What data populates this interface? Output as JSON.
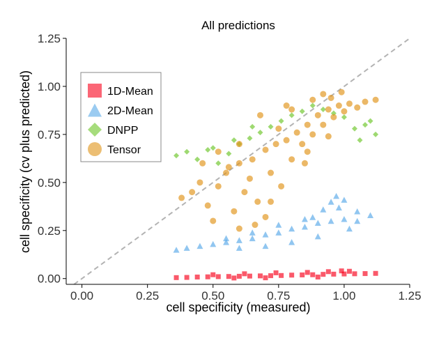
{
  "chart_data": {
    "type": "scatter",
    "title": "All predictions",
    "xlabel": "cell specificity (measured)",
    "ylabel": "cell specificity (cv plus predicted)",
    "xlim": [
      -0.06,
      1.25
    ],
    "ylim": [
      -0.03,
      1.25
    ],
    "x_ticks": [
      "0.00",
      "0.25",
      "0.50",
      "0.75",
      "1.00",
      "1.25"
    ],
    "y_ticks": [
      "0.00",
      "0.25",
      "0.50",
      "0.75",
      "1.00",
      "1.25"
    ],
    "x_tick_values": [
      0,
      0.25,
      0.5,
      0.75,
      1.0,
      1.25
    ],
    "y_tick_values": [
      0,
      0.25,
      0.5,
      0.75,
      1.0,
      1.25
    ],
    "grid": false,
    "reference_line": {
      "style": "dashed",
      "slope": 1,
      "intercept": 0,
      "color": "#b3b3b3"
    },
    "legend_position": "left",
    "series": [
      {
        "name": "1D-Mean",
        "marker": "square",
        "color": "#f8001a",
        "points": [
          [
            0.36,
            0.005
          ],
          [
            0.4,
            0.006
          ],
          [
            0.44,
            0.008
          ],
          [
            0.48,
            0.009
          ],
          [
            0.52,
            0.01
          ],
          [
            0.56,
            0.011
          ],
          [
            0.6,
            0.012
          ],
          [
            0.64,
            0.013
          ],
          [
            0.68,
            0.014
          ],
          [
            0.72,
            0.015
          ],
          [
            0.76,
            0.016
          ],
          [
            0.8,
            0.018
          ],
          [
            0.84,
            0.019
          ],
          [
            0.88,
            0.02
          ],
          [
            0.92,
            0.022
          ],
          [
            0.96,
            0.023
          ],
          [
            1.0,
            0.024
          ],
          [
            1.04,
            0.025
          ],
          [
            1.08,
            0.026
          ],
          [
            1.12,
            0.027
          ],
          [
            0.5,
            0.02
          ],
          [
            0.62,
            0.025
          ],
          [
            0.74,
            0.03
          ],
          [
            0.86,
            0.032
          ],
          [
            0.94,
            0.036
          ],
          [
            0.99,
            0.04
          ],
          [
            1.02,
            0.038
          ],
          [
            0.9,
            0.008
          ],
          [
            0.7,
            0.004
          ],
          [
            0.58,
            0.003
          ]
        ]
      },
      {
        "name": "2D-Mean",
        "marker": "triangle",
        "color": "#56a8e8",
        "points": [
          [
            0.36,
            0.15
          ],
          [
            0.4,
            0.16
          ],
          [
            0.45,
            0.17
          ],
          [
            0.5,
            0.18
          ],
          [
            0.55,
            0.19
          ],
          [
            0.6,
            0.2
          ],
          [
            0.65,
            0.21
          ],
          [
            0.7,
            0.23
          ],
          [
            0.75,
            0.24
          ],
          [
            0.8,
            0.26
          ],
          [
            0.85,
            0.27
          ],
          [
            0.9,
            0.29
          ],
          [
            0.95,
            0.3
          ],
          [
            1.0,
            0.31
          ],
          [
            1.05,
            0.3
          ],
          [
            1.1,
            0.33
          ],
          [
            0.88,
            0.32
          ],
          [
            0.92,
            0.36
          ],
          [
            0.95,
            0.4
          ],
          [
            0.97,
            0.43
          ],
          [
            1.0,
            0.41
          ],
          [
            0.98,
            0.37
          ],
          [
            0.9,
            0.22
          ],
          [
            0.8,
            0.19
          ],
          [
            0.7,
            0.17
          ],
          [
            0.6,
            0.16
          ],
          [
            0.75,
            0.28
          ],
          [
            0.85,
            0.31
          ],
          [
            1.02,
            0.26
          ],
          [
            1.05,
            0.35
          ],
          [
            0.65,
            0.24
          ],
          [
            0.55,
            0.21
          ]
        ]
      },
      {
        "name": "DNPP",
        "marker": "diamond",
        "color": "#6ac425",
        "points": [
          [
            0.36,
            0.64
          ],
          [
            0.4,
            0.66
          ],
          [
            0.44,
            0.62
          ],
          [
            0.48,
            0.67
          ],
          [
            0.52,
            0.6
          ],
          [
            0.56,
            0.65
          ],
          [
            0.6,
            0.7
          ],
          [
            0.64,
            0.73
          ],
          [
            0.68,
            0.76
          ],
          [
            0.72,
            0.79
          ],
          [
            0.76,
            0.82
          ],
          [
            0.8,
            0.85
          ],
          [
            0.84,
            0.87
          ],
          [
            0.88,
            0.9
          ],
          [
            0.92,
            0.88
          ],
          [
            0.96,
            0.86
          ],
          [
            1.0,
            0.84
          ],
          [
            1.04,
            0.78
          ],
          [
            1.08,
            0.8
          ],
          [
            1.12,
            0.75
          ],
          [
            1.06,
            0.72
          ],
          [
            1.1,
            0.82
          ],
          [
            0.58,
            0.72
          ],
          [
            0.5,
            0.68
          ],
          [
            0.65,
            0.79
          ]
        ]
      },
      {
        "name": "Tensor",
        "marker": "circle",
        "color": "#e09215",
        "points": [
          [
            0.38,
            0.42
          ],
          [
            0.42,
            0.45
          ],
          [
            0.45,
            0.5
          ],
          [
            0.48,
            0.38
          ],
          [
            0.5,
            0.3
          ],
          [
            0.52,
            0.48
          ],
          [
            0.55,
            0.55
          ],
          [
            0.58,
            0.35
          ],
          [
            0.6,
            0.6
          ],
          [
            0.62,
            0.45
          ],
          [
            0.65,
            0.62
          ],
          [
            0.67,
            0.4
          ],
          [
            0.7,
            0.67
          ],
          [
            0.72,
            0.55
          ],
          [
            0.74,
            0.7
          ],
          [
            0.76,
            0.48
          ],
          [
            0.78,
            0.72
          ],
          [
            0.8,
            0.62
          ],
          [
            0.82,
            0.76
          ],
          [
            0.84,
            0.7
          ],
          [
            0.86,
            0.8
          ],
          [
            0.88,
            0.75
          ],
          [
            0.9,
            0.85
          ],
          [
            0.92,
            0.8
          ],
          [
            0.94,
            0.88
          ],
          [
            0.96,
            0.84
          ],
          [
            0.98,
            0.9
          ],
          [
            1.0,
            0.87
          ],
          [
            1.02,
            0.91
          ],
          [
            1.05,
            0.89
          ],
          [
            1.08,
            0.92
          ],
          [
            1.12,
            0.93
          ],
          [
            0.7,
            0.32
          ],
          [
            0.66,
            0.28
          ],
          [
            0.6,
            0.26
          ],
          [
            0.85,
            0.6
          ],
          [
            0.75,
            0.78
          ],
          [
            0.8,
            0.88
          ],
          [
            0.88,
            0.93
          ],
          [
            0.95,
            0.94
          ],
          [
            0.72,
            0.4
          ],
          [
            0.64,
            0.52
          ],
          [
            0.56,
            0.58
          ],
          [
            0.46,
            0.6
          ],
          [
            0.68,
            0.85
          ],
          [
            0.78,
            0.9
          ],
          [
            0.92,
            0.96
          ],
          [
            0.99,
            0.97
          ],
          [
            0.86,
            0.66
          ],
          [
            0.94,
            0.74
          ],
          [
            0.6,
            0.7
          ],
          [
            0.52,
            0.66
          ]
        ]
      }
    ]
  }
}
